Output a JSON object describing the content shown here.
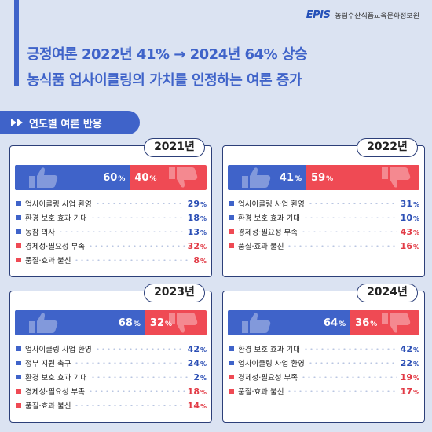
{
  "header": {
    "logo_mark": "EPIS",
    "org_name": "농림수산식품교육문화정보원",
    "title_line1": "긍정여론 2022년 41% → 2024년 64% 상승",
    "title_line2": "농식품 업사이클링의 가치를 인정하는 여론 증가"
  },
  "section": {
    "label": "연도별 여론 반응"
  },
  "colors": {
    "positive": "#3f63c9",
    "negative": "#ef4a54",
    "background": "#dbe3f2"
  },
  "chart_data": [
    {
      "type": "bar",
      "year": "2021년",
      "positive": 60,
      "negative": 40,
      "items": [
        {
          "label": "업사이클링 사업 환영",
          "value": 29,
          "kind": "pos"
        },
        {
          "label": "환경 보호 효과 기대",
          "value": 18,
          "kind": "pos"
        },
        {
          "label": "동참 의사",
          "value": 13,
          "kind": "pos"
        },
        {
          "label": "경제성·필요성 부족",
          "value": 32,
          "kind": "neg"
        },
        {
          "label": "품질·효과 불신",
          "value": 8,
          "kind": "neg"
        }
      ]
    },
    {
      "type": "bar",
      "year": "2022년",
      "positive": 41,
      "negative": 59,
      "items": [
        {
          "label": "업사이클링 사업 환영",
          "value": 31,
          "kind": "pos"
        },
        {
          "label": "환경 보호 효과 기대",
          "value": 10,
          "kind": "pos"
        },
        {
          "label": "경제성·필요성 부족",
          "value": 43,
          "kind": "neg"
        },
        {
          "label": "품질·효과 불신",
          "value": 16,
          "kind": "neg"
        }
      ]
    },
    {
      "type": "bar",
      "year": "2023년",
      "positive": 68,
      "negative": 32,
      "items": [
        {
          "label": "업사이클링 사업 환영",
          "value": 42,
          "kind": "pos"
        },
        {
          "label": "정부 지원 촉구",
          "value": 24,
          "kind": "pos"
        },
        {
          "label": "환경 보호 효과 기대",
          "value": 2,
          "kind": "pos"
        },
        {
          "label": "경제성·필요성 부족",
          "value": 18,
          "kind": "neg"
        },
        {
          "label": "품질·효과 불신",
          "value": 14,
          "kind": "neg"
        }
      ]
    },
    {
      "type": "bar",
      "year": "2024년",
      "positive": 64,
      "negative": 36,
      "items": [
        {
          "label": "환경 보호 효과 기대",
          "value": 42,
          "kind": "pos"
        },
        {
          "label": "업사이클링 사업 환영",
          "value": 22,
          "kind": "pos"
        },
        {
          "label": "경제성·필요성 부족",
          "value": 19,
          "kind": "neg"
        },
        {
          "label": "품질·효과 불신",
          "value": 17,
          "kind": "neg"
        }
      ]
    }
  ]
}
